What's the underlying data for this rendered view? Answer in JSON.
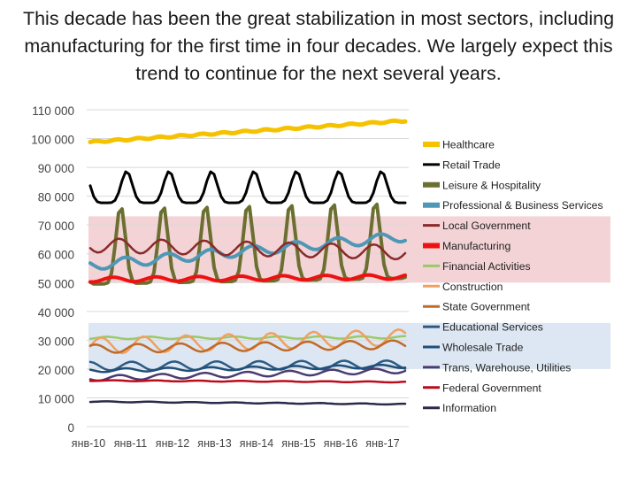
{
  "slide": {
    "title": "This decade has been the great stabilization in most sectors, including manufacturing for the first time in four decades. We largely expect this trend to continue for the next several years."
  },
  "chart_data": {
    "type": "line",
    "title": "",
    "xlabel": "",
    "ylabel": "",
    "ylim": [
      0,
      110000
    ],
    "yticks": [
      0,
      10000,
      20000,
      30000,
      40000,
      50000,
      60000,
      70000,
      80000,
      90000,
      100000,
      110000
    ],
    "ytick_labels": [
      "0",
      "10 000",
      "20 000",
      "30 000",
      "40 000",
      "50 000",
      "60 000",
      "70 000",
      "80 000",
      "90 000",
      "100 000",
      "110 000"
    ],
    "xtick_labels": [
      "янв-10",
      "янв-11",
      "янв-12",
      "янв-13",
      "янв-14",
      "янв-15",
      "янв-16",
      "янв-17"
    ],
    "x_range": [
      "2010-01",
      "2017-06"
    ],
    "grid": "horizontal",
    "legend_position": "right",
    "highlight_bands": [
      {
        "y_from": 50000,
        "y_to": 73000,
        "color": "#f3d3d6"
      },
      {
        "y_from": 20000,
        "y_to": 36000,
        "color": "#dde7f3"
      }
    ],
    "series": [
      {
        "name": "Healthcare",
        "color": "#f5c200",
        "width": 5,
        "start": 98800,
        "end": 106200,
        "amplitude": 300,
        "shape": "sine",
        "period": 6
      },
      {
        "name": "Retail Trade",
        "color": "#000000",
        "width": 3,
        "start": 81000,
        "end": 81000,
        "amplitude": 5500,
        "shape": "spiky",
        "period": 12
      },
      {
        "name": "Leisure & Hospitality",
        "color": "#6b7030",
        "width": 4,
        "start": 49500,
        "end": 51500,
        "amplitude": 27000,
        "shape": "peak",
        "period": 12
      },
      {
        "name": "Professional & Business Services",
        "color": "#4f97b6",
        "width": 4,
        "start": 56000,
        "end": 66000,
        "amplitude": 1700,
        "shape": "sine",
        "period": 12
      },
      {
        "name": "Local Government",
        "color": "#8b2a2a",
        "width": 2.5,
        "start": 63000,
        "end": 60500,
        "amplitude": 2500,
        "shape": "sine",
        "period": 12
      },
      {
        "name": "Manufacturing",
        "color": "#ee1111",
        "width": 4,
        "start": 51000,
        "end": 52000,
        "amplitude": 800,
        "shape": "sine",
        "period": 12
      },
      {
        "name": "Financial Activities",
        "color": "#9ac96a",
        "width": 2.5,
        "start": 30800,
        "end": 31000,
        "amplitude": 400,
        "shape": "sine",
        "period": 12
      },
      {
        "name": "Construction",
        "color": "#f0a060",
        "width": 2.5,
        "start": 28000,
        "end": 31000,
        "amplitude": 2800,
        "shape": "sine",
        "period": 12
      },
      {
        "name": "State Government",
        "color": "#c06a28",
        "width": 2.5,
        "start": 27000,
        "end": 28500,
        "amplitude": 1500,
        "shape": "sine",
        "period": 12
      },
      {
        "name": "Educational Services",
        "color": "#2c5a82",
        "width": 2.5,
        "start": 21000,
        "end": 21500,
        "amplitude": 1500,
        "shape": "sine",
        "period": 12
      },
      {
        "name": "Wholesale Trade",
        "color": "#1f4f7a",
        "width": 2.5,
        "start": 19500,
        "end": 21000,
        "amplitude": 600,
        "shape": "sine",
        "period": 12
      },
      {
        "name": "Trans, Warehouse, Utilities",
        "color": "#4a3c72",
        "width": 2.5,
        "start": 16800,
        "end": 19500,
        "amplitude": 900,
        "shape": "sine",
        "period": 12
      },
      {
        "name": "Federal Government",
        "color": "#bb0c1c",
        "width": 2.5,
        "start": 16000,
        "end": 15500,
        "amplitude": 150,
        "shape": "sine",
        "period": 12
      },
      {
        "name": "Information",
        "color": "#2a2a4a",
        "width": 2.5,
        "start": 8700,
        "end": 7800,
        "amplitude": 150,
        "shape": "sine",
        "period": 12
      }
    ]
  }
}
